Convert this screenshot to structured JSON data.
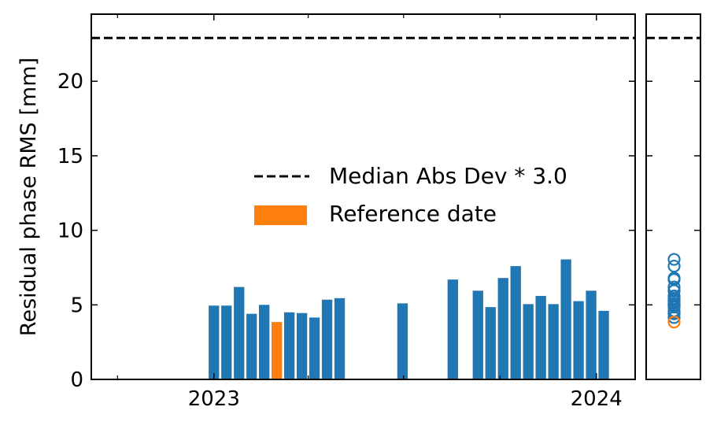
{
  "chart_data": {
    "type": "bar",
    "ylabel": "Residual phase RMS [mm]",
    "ylim": [
      0,
      24.5
    ],
    "yticks": [
      0,
      5,
      10,
      15,
      20
    ],
    "xticks": [
      {
        "date": "2023-01-01",
        "label": "2023"
      },
      {
        "date": "2024-01-01",
        "label": "2024"
      }
    ],
    "xlim": [
      "2022-09-06",
      "2024-02-07"
    ],
    "threshold": {
      "value": 22.9,
      "label": "Median Abs Dev * 3.0",
      "style": "dashed",
      "color": "#000000"
    },
    "bar_width_days": 10,
    "series": [
      {
        "name": "",
        "color": "#1f77b4",
        "points": [
          {
            "date": "2023-01-01",
            "value": 4.95
          },
          {
            "date": "2023-01-13",
            "value": 4.95
          },
          {
            "date": "2023-01-25",
            "value": 6.2
          },
          {
            "date": "2023-02-06",
            "value": 4.4
          },
          {
            "date": "2023-02-18",
            "value": 5.0
          },
          {
            "date": "2023-03-14",
            "value": 4.5
          },
          {
            "date": "2023-03-26",
            "value": 4.45
          },
          {
            "date": "2023-04-07",
            "value": 4.15
          },
          {
            "date": "2023-04-19",
            "value": 5.35
          },
          {
            "date": "2023-05-01",
            "value": 5.45
          },
          {
            "date": "2023-06-30",
            "value": 5.1
          },
          {
            "date": "2023-08-17",
            "value": 6.7
          },
          {
            "date": "2023-09-10",
            "value": 5.95
          },
          {
            "date": "2023-09-22",
            "value": 4.85
          },
          {
            "date": "2023-10-04",
            "value": 6.8
          },
          {
            "date": "2023-10-16",
            "value": 7.6
          },
          {
            "date": "2023-10-28",
            "value": 5.05
          },
          {
            "date": "2023-11-09",
            "value": 5.6
          },
          {
            "date": "2023-11-21",
            "value": 5.05
          },
          {
            "date": "2023-12-03",
            "value": 8.05
          },
          {
            "date": "2023-12-15",
            "value": 5.25
          },
          {
            "date": "2023-12-27",
            "value": 5.95
          },
          {
            "date": "2024-01-08",
            "value": 4.6
          }
        ]
      },
      {
        "name": "Reference date",
        "color": "#ff7f0e",
        "points": [
          {
            "date": "2023-03-02",
            "value": 3.85
          }
        ]
      }
    ],
    "legend": {
      "placement": "center-right",
      "entries": [
        {
          "label": "Median Abs Dev * 3.0",
          "marker": "dashed-line",
          "color": "#000000"
        },
        {
          "label": "Reference date",
          "marker": "patch",
          "color": "#ff7f0e"
        }
      ]
    },
    "side_panel": {
      "type": "scatter",
      "marker": "hollow-circle",
      "ylim": [
        0,
        24.5
      ],
      "threshold": 22.9
    }
  }
}
